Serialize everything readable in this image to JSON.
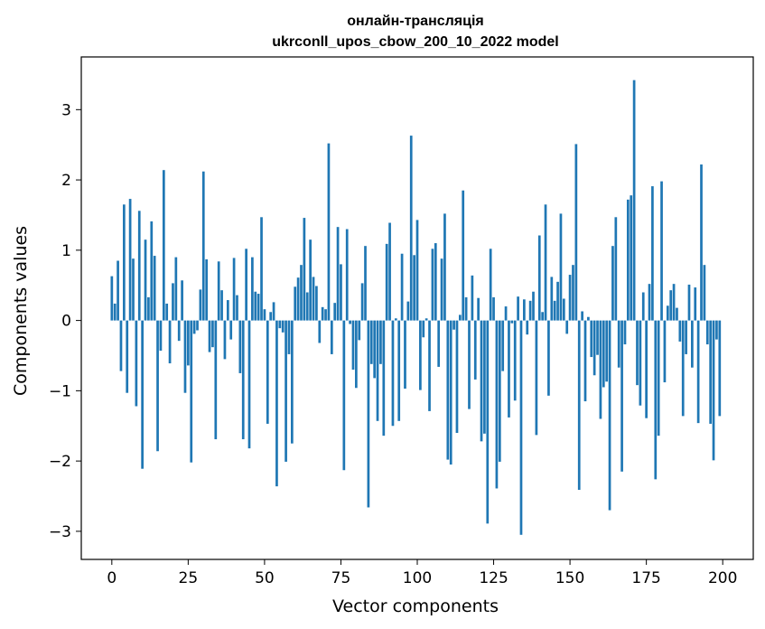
{
  "chart_data": {
    "type": "bar",
    "title": "онлайн-трансляція",
    "subtitle": "ukrconll_upos_cbow_200_10_2022 model",
    "xlabel": "Vector components",
    "ylabel": "Components values",
    "xlim": [
      -10,
      210
    ],
    "ylim": [
      -3.4,
      3.75
    ],
    "xticks": [
      0,
      25,
      50,
      75,
      100,
      125,
      150,
      175,
      200
    ],
    "yticks": [
      -3,
      -2,
      -1,
      0,
      1,
      2,
      3
    ],
    "ytick_labels": [
      "−3",
      "−2",
      "−1",
      "0",
      "1",
      "2",
      "3"
    ],
    "grid": false,
    "bar_color": "#1f77b4",
    "x": [
      0,
      1,
      2,
      3,
      4,
      5,
      6,
      7,
      8,
      9,
      10,
      11,
      12,
      13,
      14,
      15,
      16,
      17,
      18,
      19,
      20,
      21,
      22,
      23,
      24,
      25,
      26,
      27,
      28,
      29,
      30,
      31,
      32,
      33,
      34,
      35,
      36,
      37,
      38,
      39,
      40,
      41,
      42,
      43,
      44,
      45,
      46,
      47,
      48,
      49,
      50,
      51,
      52,
      53,
      54,
      55,
      56,
      57,
      58,
      59,
      60,
      61,
      62,
      63,
      64,
      65,
      66,
      67,
      68,
      69,
      70,
      71,
      72,
      73,
      74,
      75,
      76,
      77,
      78,
      79,
      80,
      81,
      82,
      83,
      84,
      85,
      86,
      87,
      88,
      89,
      90,
      91,
      92,
      93,
      94,
      95,
      96,
      97,
      98,
      99,
      100,
      101,
      102,
      103,
      104,
      105,
      106,
      107,
      108,
      109,
      110,
      111,
      112,
      113,
      114,
      115,
      116,
      117,
      118,
      119,
      120,
      121,
      122,
      123,
      124,
      125,
      126,
      127,
      128,
      129,
      130,
      131,
      132,
      133,
      134,
      135,
      136,
      137,
      138,
      139,
      140,
      141,
      142,
      143,
      144,
      145,
      146,
      147,
      148,
      149,
      150,
      151,
      152,
      153,
      154,
      155,
      156,
      157,
      158,
      159,
      160,
      161,
      162,
      163,
      164,
      165,
      166,
      167,
      168,
      169,
      170,
      171,
      172,
      173,
      174,
      175,
      176,
      177,
      178,
      179,
      180,
      181,
      182,
      183,
      184,
      185,
      186,
      187,
      188,
      189,
      190,
      191,
      192,
      193,
      194,
      195,
      196,
      197,
      198,
      199
    ],
    "values": [
      0.63,
      0.24,
      0.85,
      -0.72,
      1.65,
      -1.03,
      1.73,
      0.88,
      -1.22,
      1.56,
      -2.11,
      1.15,
      0.33,
      1.41,
      0.92,
      -1.86,
      -0.43,
      2.14,
      0.24,
      -0.61,
      0.53,
      0.9,
      -0.29,
      0.57,
      -1.03,
      -0.64,
      -2.02,
      -0.19,
      -0.14,
      0.44,
      2.12,
      0.87,
      -0.45,
      -0.38,
      -1.69,
      0.84,
      0.43,
      -0.55,
      0.29,
      -0.27,
      0.89,
      0.36,
      -0.75,
      -1.69,
      1.02,
      -1.82,
      0.9,
      0.41,
      0.38,
      1.47,
      0.16,
      -1.47,
      0.12,
      0.26,
      -2.36,
      -0.11,
      -0.17,
      -2.01,
      -0.48,
      -1.75,
      0.48,
      0.61,
      0.79,
      1.46,
      0.4,
      1.15,
      0.62,
      0.49,
      -0.32,
      0.19,
      0.16,
      2.52,
      -0.48,
      0.25,
      1.33,
      0.8,
      -2.13,
      1.3,
      -0.05,
      -0.7,
      -0.96,
      -0.28,
      0.53,
      1.06,
      -2.66,
      -0.62,
      -0.82,
      -1.43,
      -0.62,
      -1.64,
      1.09,
      1.39,
      -1.5,
      0.03,
      -1.43,
      0.95,
      -0.97,
      0.27,
      2.63,
      0.93,
      1.43,
      -0.99,
      -0.24,
      0.03,
      -1.29,
      1.02,
      1.1,
      -0.66,
      0.88,
      1.52,
      -1.98,
      -2.05,
      -0.13,
      -1.6,
      0.08,
      1.85,
      0.33,
      -1.26,
      0.64,
      -0.84,
      0.32,
      -1.72,
      -1.61,
      -2.89,
      1.02,
      0.33,
      -2.39,
      -2.01,
      -0.72,
      0.2,
      -1.38,
      -0.04,
      -1.14,
      0.34,
      -3.05,
      0.3,
      -0.2,
      0.28,
      0.41,
      -1.63,
      1.21,
      0.12,
      1.65,
      -1.07,
      0.62,
      0.28,
      0.55,
      1.52,
      0.31,
      -0.19,
      0.65,
      0.79,
      2.51,
      -2.41,
      0.13,
      -1.15,
      0.05,
      -0.52,
      -0.78,
      -0.49,
      -1.4,
      -0.95,
      -0.87,
      -2.7,
      1.06,
      1.47,
      -0.67,
      -2.15,
      -0.34,
      1.72,
      1.78,
      3.42,
      -0.92,
      -1.21,
      0.4,
      -1.39,
      0.52,
      1.91,
      -2.26,
      -1.64,
      1.98,
      -0.88,
      0.21,
      0.43,
      0.52,
      0.18,
      -0.3,
      -1.36,
      -0.48,
      0.51,
      -0.67,
      0.47,
      -1.46,
      2.22,
      0.79,
      -0.34,
      -1.47,
      -1.99,
      -0.27,
      -1.36
    ]
  }
}
